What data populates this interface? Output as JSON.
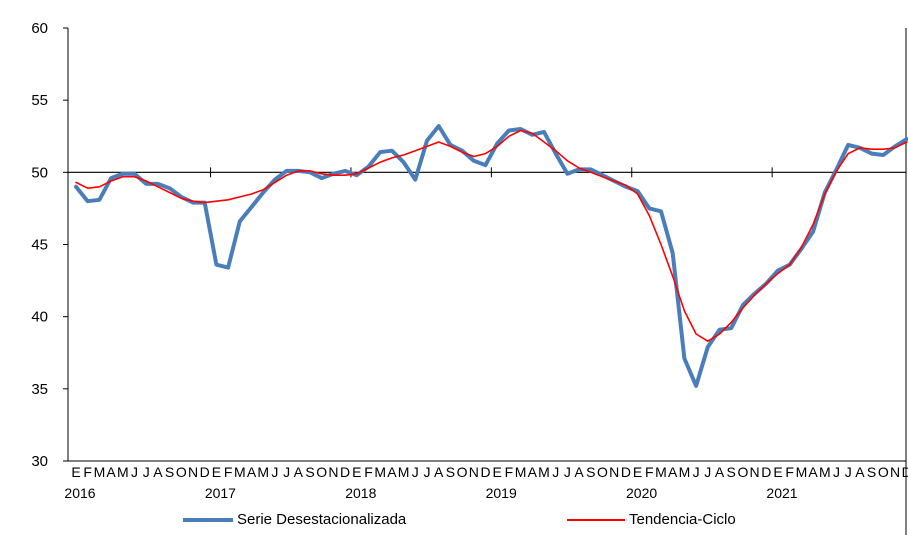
{
  "chart_data": {
    "type": "line",
    "x_month_letters": [
      "E",
      "F",
      "M",
      "A",
      "M",
      "J",
      "J",
      "A",
      "S",
      "O",
      "N",
      "D"
    ],
    "x_year_labels": [
      "2016",
      "2017",
      "2018",
      "2019",
      "2020",
      "2021"
    ],
    "y_tick_labels": [
      "30",
      "35",
      "40",
      "45",
      "50",
      "55",
      "60"
    ],
    "ylim": [
      30,
      60
    ],
    "reference_line": 50,
    "grid": false,
    "legend_position": "bottom",
    "series": [
      {
        "name": "Serie Desestacionalizada",
        "color": "#4A7EBB",
        "values": [
          49.0,
          48.0,
          48.1,
          49.6,
          49.9,
          49.9,
          49.2,
          49.2,
          48.9,
          48.3,
          47.9,
          47.9,
          43.6,
          43.4,
          46.6,
          47.6,
          48.6,
          49.5,
          50.1,
          50.1,
          50.0,
          49.6,
          49.9,
          50.1,
          49.8,
          50.4,
          51.4,
          51.5,
          50.7,
          49.5,
          52.2,
          53.2,
          51.9,
          51.5,
          50.8,
          50.5,
          52.0,
          52.9,
          53.0,
          52.6,
          52.8,
          51.3,
          49.9,
          50.2,
          50.2,
          49.8,
          49.4,
          49.0,
          48.7,
          47.5,
          47.3,
          44.4,
          37.1,
          35.2,
          37.9,
          39.1,
          39.2,
          40.8,
          41.6,
          42.3,
          43.2,
          43.6,
          44.7,
          45.9,
          48.6,
          50.2,
          51.9,
          51.7,
          51.3,
          51.2,
          51.8,
          52.3
        ]
      },
      {
        "name": "Tendencia-Ciclo",
        "color": "#FF0000",
        "values": [
          49.3,
          48.9,
          49.0,
          49.4,
          49.7,
          49.7,
          49.4,
          49.0,
          48.6,
          48.2,
          48.0,
          47.9,
          48.0,
          48.1,
          48.3,
          48.5,
          48.8,
          49.3,
          49.8,
          50.1,
          50.1,
          49.9,
          49.8,
          49.8,
          49.9,
          50.3,
          50.7,
          51.0,
          51.2,
          51.5,
          51.8,
          52.1,
          51.8,
          51.4,
          51.1,
          51.3,
          51.8,
          52.5,
          52.9,
          52.7,
          52.1,
          51.5,
          50.8,
          50.3,
          50.0,
          49.7,
          49.4,
          49.1,
          48.5,
          47.0,
          45.0,
          42.8,
          40.4,
          38.8,
          38.3,
          38.8,
          39.6,
          40.6,
          41.5,
          42.3,
          43.0,
          43.6,
          44.8,
          46.4,
          48.5,
          50.1,
          51.3,
          51.7,
          51.6,
          51.6,
          51.7,
          52.1
        ]
      }
    ]
  }
}
